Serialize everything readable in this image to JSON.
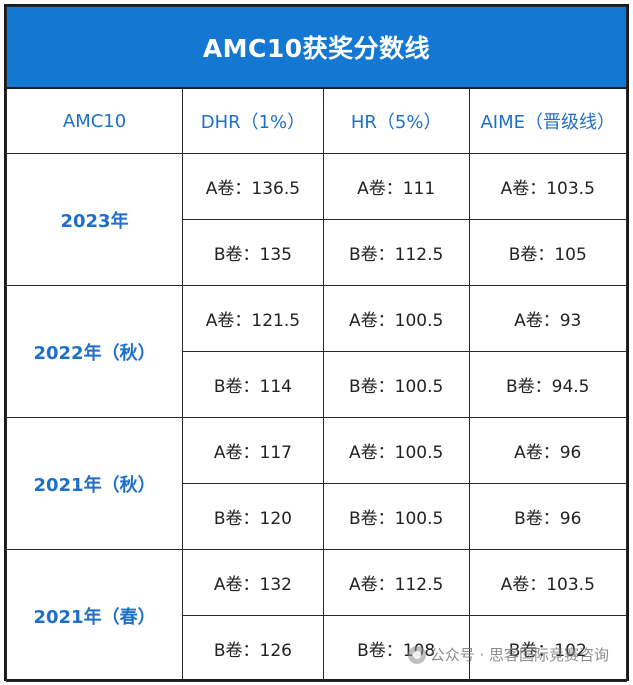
{
  "title": "AMC10获奖分数线",
  "headers": [
    "AMC10",
    "DHR（1%）",
    "HR（5%）",
    "AIME（晋级线）"
  ],
  "groups": [
    {
      "year": "2023年",
      "rows": [
        [
          "A卷：136.5",
          "A卷：111",
          "A卷：103.5"
        ],
        [
          "B卷：135",
          "B卷：112.5",
          "B卷：105"
        ]
      ]
    },
    {
      "year": "2022年（秋）",
      "rows": [
        [
          "A卷：121.5",
          "A卷：100.5",
          "A卷：93"
        ],
        [
          "B卷：114",
          "B卷：100.5",
          "B卷：94.5"
        ]
      ]
    },
    {
      "year": "2021年（秋）",
      "rows": [
        [
          "A卷：117",
          "A卷：100.5",
          "A卷：96"
        ],
        [
          "B卷：120",
          "B卷：100.5",
          "B卷：96"
        ]
      ]
    },
    {
      "year": "2021年（春）",
      "rows": [
        [
          "A卷：132",
          "A卷：112.5",
          "A卷：103.5"
        ],
        [
          "B卷：126",
          "B卷：108",
          "B卷：102"
        ]
      ]
    }
  ],
  "watermark": "公众号 · 思客国际竞赛咨询",
  "colors": {
    "title_bg": "#1478d2",
    "title_text": "#ffffff",
    "accent_text": "#1e6fc8",
    "body_text": "#222222"
  }
}
